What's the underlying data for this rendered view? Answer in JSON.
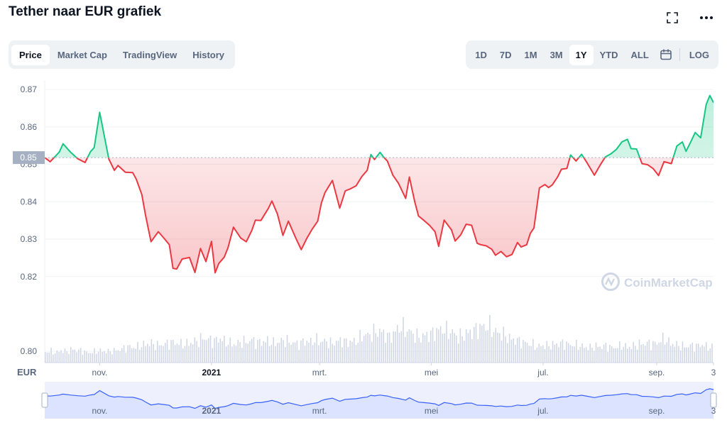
{
  "page": {
    "title": "Tether naar EUR grafiek"
  },
  "tabs": [
    {
      "label": "Price",
      "active": true
    },
    {
      "label": "Market Cap",
      "active": false
    },
    {
      "label": "TradingView",
      "active": false
    },
    {
      "label": "History",
      "active": false
    }
  ],
  "ranges": [
    {
      "label": "1D",
      "active": false
    },
    {
      "label": "7D",
      "active": false
    },
    {
      "label": "1M",
      "active": false
    },
    {
      "label": "3M",
      "active": false
    },
    {
      "label": "1Y",
      "active": true
    },
    {
      "label": "YTD",
      "active": false
    },
    {
      "label": "ALL",
      "active": false
    }
  ],
  "log_label": "LOG",
  "icons": {
    "fullscreen": "expand-icon",
    "more": "more-dots-icon",
    "calendar": "calendar-icon"
  },
  "colors": {
    "up": "#16c784",
    "down": "#ea3943",
    "volume": "#cfd6e4",
    "navigator": "#3861fb",
    "current_price_tag": "#a6b0c3"
  },
  "watermark": "CoinMarketCap",
  "chart_data": {
    "type": "line",
    "currency_label": "EUR",
    "current_price_label": "0.85",
    "baseline": 0.8518,
    "ylim": [
      0.797,
      0.8725
    ],
    "y_ticks": [
      0.87,
      0.86,
      0.85,
      0.84,
      0.83,
      0.82,
      0.8
    ],
    "y_tick_labels": [
      "0.87",
      "0.86",
      "0.85",
      "0.84",
      "0.83",
      "0.82",
      "0.80"
    ],
    "x_ticks": [
      {
        "label": "nov.",
        "day": 30
      },
      {
        "label": "2021",
        "day": 91
      },
      {
        "label": "mrt.",
        "day": 150
      },
      {
        "label": "mei",
        "day": 211
      },
      {
        "label": "jul.",
        "day": 272
      },
      {
        "label": "sep.",
        "day": 334
      },
      {
        "label": "3",
        "day": 365
      }
    ],
    "series": [
      {
        "day": [
          0,
          3,
          8,
          10,
          14,
          18,
          22,
          25,
          27,
          30,
          35,
          38,
          40,
          44,
          48,
          50,
          53,
          55,
          58,
          62,
          65,
          68,
          70,
          72,
          75,
          79,
          82,
          85,
          88,
          91,
          93,
          95,
          98,
          100,
          103,
          107,
          110,
          113,
          115,
          118,
          122,
          124,
          127,
          130,
          133,
          137,
          140,
          143,
          146,
          149,
          151,
          153,
          157,
          161,
          164,
          167,
          170,
          173,
          176,
          178,
          180,
          183,
          185,
          187,
          190,
          193,
          197,
          199,
          202,
          204,
          207,
          210,
          213,
          215,
          218,
          222,
          224,
          227,
          230,
          233,
          236,
          238,
          241,
          244,
          246,
          249,
          252,
          255,
          258,
          260,
          263,
          265,
          267,
          270,
          273,
          275,
          277,
          280,
          282,
          285,
          287,
          290,
          293,
          296,
          300,
          303,
          306,
          309,
          312,
          315,
          318,
          320,
          323,
          326,
          329,
          332,
          335,
          338,
          342,
          345,
          348,
          350,
          352,
          355,
          358,
          361,
          363,
          365
        ],
        "values": [
          0.8518,
          0.8507,
          0.8533,
          0.8555,
          0.8533,
          0.8515,
          0.8505,
          0.8534,
          0.8545,
          0.8639,
          0.8514,
          0.8484,
          0.8497,
          0.8479,
          0.8478,
          0.846,
          0.8419,
          0.8365,
          0.8293,
          0.832,
          0.8303,
          0.8285,
          0.8222,
          0.822,
          0.8247,
          0.8251,
          0.8211,
          0.8275,
          0.824,
          0.8294,
          0.821,
          0.8235,
          0.8252,
          0.8277,
          0.8332,
          0.8303,
          0.8293,
          0.8323,
          0.8351,
          0.835,
          0.8382,
          0.8402,
          0.8367,
          0.831,
          0.8348,
          0.8303,
          0.8272,
          0.8302,
          0.8327,
          0.8348,
          0.8397,
          0.8425,
          0.8457,
          0.8383,
          0.8429,
          0.8435,
          0.8443,
          0.8467,
          0.8484,
          0.8526,
          0.8513,
          0.8532,
          0.8519,
          0.8509,
          0.8471,
          0.845,
          0.8409,
          0.8466,
          0.8399,
          0.8362,
          0.835,
          0.8337,
          0.832,
          0.8281,
          0.8351,
          0.8325,
          0.8295,
          0.8311,
          0.834,
          0.8337,
          0.8289,
          0.8285,
          0.8282,
          0.8273,
          0.8257,
          0.8267,
          0.8253,
          0.8259,
          0.8291,
          0.8279,
          0.8285,
          0.8315,
          0.833,
          0.8437,
          0.8446,
          0.8438,
          0.8445,
          0.8467,
          0.8487,
          0.8489,
          0.8525,
          0.8509,
          0.8527,
          0.8504,
          0.8471,
          0.8497,
          0.852,
          0.8528,
          0.854,
          0.856,
          0.8567,
          0.8542,
          0.8541,
          0.8502,
          0.8499,
          0.8489,
          0.847,
          0.8507,
          0.8502,
          0.8549,
          0.856,
          0.8535,
          0.8554,
          0.8585,
          0.8571,
          0.866,
          0.8684,
          0.8665
        ]
      }
    ],
    "volume_relative": [
      0.24,
      0.26,
      0.22,
      0.28,
      0.25,
      0.3,
      0.28,
      0.27,
      0.22,
      0.24,
      0.27,
      0.26,
      0.25,
      0.27,
      0.29,
      0.33,
      0.36,
      0.34,
      0.38,
      0.42,
      0.44,
      0.39,
      0.41,
      0.43,
      0.46,
      0.44,
      0.41,
      0.43,
      0.47,
      0.5,
      0.56,
      0.52,
      0.49,
      0.55,
      0.47,
      0.44,
      0.41,
      0.48,
      0.46,
      0.52,
      0.45,
      0.47,
      0.49,
      0.44,
      0.46,
      0.51,
      0.47,
      0.45,
      0.42,
      0.49,
      0.46,
      0.52,
      0.47,
      0.49,
      0.43,
      0.47,
      0.51,
      0.46,
      0.48,
      0.49,
      0.63,
      0.62,
      0.67,
      0.72,
      0.66,
      0.57,
      0.68,
      0.82,
      0.75,
      0.7,
      0.6,
      0.57,
      0.63,
      0.65,
      0.72,
      0.77,
      0.7,
      0.69,
      0.57,
      0.63,
      0.68,
      0.72,
      0.79,
      0.83,
      0.81,
      0.7,
      0.66,
      0.61,
      0.53,
      0.51,
      0.47,
      0.44,
      0.41,
      0.36,
      0.39,
      0.38,
      0.41,
      0.43,
      0.44,
      0.41,
      0.4,
      0.38,
      0.35,
      0.34,
      0.37,
      0.36,
      0.38,
      0.34,
      0.35,
      0.39,
      0.35,
      0.37,
      0.41,
      0.43,
      0.44,
      0.42,
      0.47,
      0.55,
      0.44,
      0.41,
      0.38,
      0.36,
      0.39,
      0.37,
      0.41,
      0.36,
      0.34
    ]
  }
}
